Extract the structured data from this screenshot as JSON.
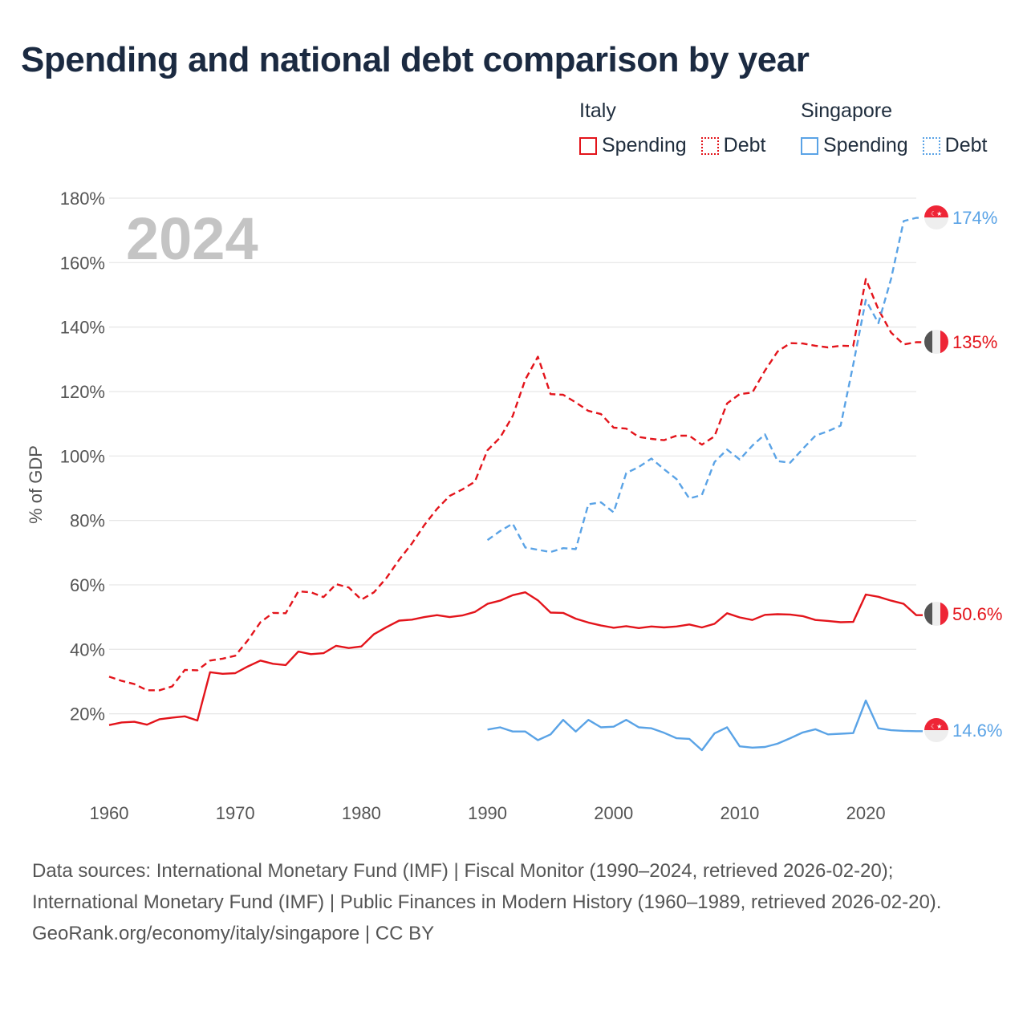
{
  "title": "Spending and national debt comparison by year",
  "legend": {
    "italy": {
      "country": "Italy",
      "spending": "Spending",
      "debt": "Debt",
      "color": "#e3141b"
    },
    "singapore": {
      "country": "Singapore",
      "spending": "Spending",
      "debt": "Debt",
      "color": "#5aa3e6"
    }
  },
  "footer": {
    "sources": "Data sources: International Monetary Fund (IMF) | Fiscal Monitor (1990–2024, retrieved 2026-02-20); International Monetary Fund (IMF) | Public Finances in Modern History (1960–1989, retrieved 2026-02-20).",
    "credit": "GeoRank.org/economy/italy/singapore | CC BY"
  },
  "chart_data": {
    "type": "line",
    "ylabel": "% of GDP",
    "year_watermark": "2024",
    "xlim": [
      1960,
      2024
    ],
    "ylim": [
      -5,
      180
    ],
    "xticks": [
      1960,
      1970,
      1980,
      1990,
      2000,
      2010,
      2020
    ],
    "xtick_labels": [
      "1960",
      "1970",
      "1980",
      "1990",
      "2000",
      "2010",
      "2020"
    ],
    "yticks": [
      20,
      40,
      60,
      80,
      100,
      120,
      140,
      160,
      180
    ],
    "ytick_labels": [
      "20%",
      "40%",
      "60%",
      "80%",
      "100%",
      "120%",
      "140%",
      "160%",
      "180%"
    ],
    "series": [
      {
        "key": "italy_debt",
        "name": "Italy Debt",
        "color": "#e3141b",
        "dashed": true,
        "start": 1960,
        "end_label": "135%",
        "end_flag": "italy",
        "values": [
          31.5,
          30.2,
          29.2,
          27.3,
          27.3,
          28.5,
          33.6,
          33.5,
          36.5,
          37.1,
          38.0,
          42.8,
          48.4,
          51.3,
          51.2,
          58.0,
          57.7,
          56.2,
          60.2,
          59.2,
          55.4,
          57.7,
          62.2,
          67.8,
          72.8,
          78.6,
          83.6,
          87.6,
          89.6,
          92.0,
          101.8,
          105.7,
          112.4,
          123.7,
          130.8,
          119.2,
          119.0,
          116.6,
          114.0,
          113.0,
          108.8,
          108.5,
          105.9,
          105.3,
          104.9,
          106.3,
          106.3,
          103.5,
          106.1,
          116.3,
          119.2,
          119.7,
          126.5,
          132.4,
          135.0,
          134.9,
          134.2,
          133.7,
          134.2,
          134.1,
          154.9,
          145.5,
          138.3,
          134.6,
          135.3
        ]
      },
      {
        "key": "sg_debt",
        "name": "Singapore Debt",
        "color": "#5aa3e6",
        "dashed": true,
        "start": 1990,
        "end_label": "174%",
        "end_flag": "singapore",
        "values": [
          73.9,
          76.7,
          79.0,
          71.6,
          70.9,
          70.2,
          71.4,
          71.1,
          85.0,
          85.6,
          82.5,
          94.7,
          96.6,
          99.2,
          95.9,
          92.8,
          86.8,
          87.9,
          98.1,
          102.0,
          98.9,
          103.2,
          106.7,
          98.4,
          97.9,
          102.2,
          106.3,
          107.7,
          109.4,
          128.3,
          148.4,
          141.2,
          155.0,
          172.9,
          173.9
        ]
      },
      {
        "key": "italy_spending",
        "name": "Italy Spending",
        "color": "#e3141b",
        "dashed": false,
        "start": 1960,
        "end_label": "50.6%",
        "end_flag": "italy",
        "values": [
          16.5,
          17.3,
          17.5,
          16.6,
          18.3,
          18.8,
          19.2,
          17.9,
          32.9,
          32.4,
          32.6,
          34.7,
          36.5,
          35.5,
          35.1,
          39.3,
          38.5,
          38.8,
          41.1,
          40.4,
          40.9,
          44.7,
          46.9,
          48.9,
          49.2,
          50.0,
          50.6,
          50.0,
          50.5,
          51.6,
          54.1,
          55.1,
          56.8,
          57.7,
          55.2,
          51.4,
          51.3,
          49.5,
          48.3,
          47.4,
          46.7,
          47.2,
          46.6,
          47.1,
          46.8,
          47.1,
          47.7,
          46.8,
          47.9,
          51.2,
          49.9,
          49.1,
          50.7,
          50.9,
          50.8,
          50.3,
          49.1,
          48.8,
          48.4,
          48.5,
          57.0,
          56.3,
          55.1,
          54.1,
          50.6
        ]
      },
      {
        "key": "sg_spending",
        "name": "Singapore Spending",
        "color": "#5aa3e6",
        "dashed": false,
        "start": 1990,
        "end_label": "14.6%",
        "end_flag": "singapore",
        "values": [
          15.1,
          15.8,
          14.5,
          14.5,
          11.8,
          13.6,
          18.1,
          14.5,
          18.1,
          15.8,
          16.0,
          18.1,
          15.8,
          15.5,
          14.1,
          12.4,
          12.2,
          8.7,
          13.9,
          15.8,
          9.9,
          9.5,
          9.7,
          10.7,
          12.4,
          14.2,
          15.2,
          13.6,
          13.8,
          14.0,
          24.1,
          15.5,
          14.9,
          14.7,
          14.6
        ]
      }
    ]
  }
}
